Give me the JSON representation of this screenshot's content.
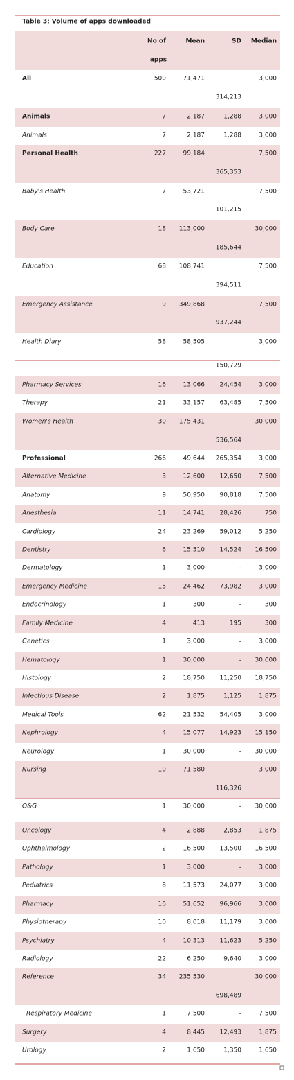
{
  "title": "Table 3: Volume of apps downloaded",
  "table": {
    "header": [
      [
        "No of",
        "apps"
      ],
      [
        "Mean"
      ],
      [
        "SD"
      ],
      [
        "Median"
      ]
    ],
    "rows": [
      [
        "All",
        "500",
        "71,471",
        "314,213",
        "3,000"
      ],
      [
        "Animals",
        "7",
        "2,187",
        "1,288",
        "3,000"
      ],
      [
        "Animals",
        "7",
        "2,187",
        "1,288",
        "3,000"
      ],
      [
        "Personal Health",
        "227",
        "99,184",
        "365,353",
        "7,500"
      ],
      [
        "Baby's Health",
        "7",
        "53,721",
        "101,215",
        "7,500"
      ],
      [
        "Body Care",
        "18",
        "113,000",
        "185,644",
        "30,000"
      ],
      [
        "Education",
        "68",
        "108,741",
        "394,511",
        "7,500"
      ],
      [
        "Emergency Assistance",
        "9",
        "349,868",
        "937,244",
        "7,500"
      ],
      [
        "Health Diary",
        "58",
        "58,505",
        "150,729",
        "3,000"
      ],
      [
        "Pharmacy Services",
        "16",
        "13,066",
        "24,454",
        "3,000"
      ],
      [
        "Therapy",
        "21",
        "33,157",
        "63,485",
        "7,500"
      ],
      [
        "Women's Health",
        "30",
        "175,431",
        "536,564",
        "30,000"
      ],
      [
        "Professional",
        "266",
        "49,644",
        "265,354",
        "3,000"
      ],
      [
        "Alternative Medicine",
        "3",
        "12,600",
        "12,650",
        "7,500"
      ],
      [
        "Anatomy",
        "9",
        "50,950",
        "90,818",
        "7,500"
      ],
      [
        "Anesthesia",
        "11",
        "14,741",
        "28,426",
        "750"
      ],
      [
        "Cardiology",
        "24",
        "23,269",
        "59,012",
        "5,250"
      ],
      [
        "Dentistry",
        "6",
        "15,510",
        "14,524",
        "16,500"
      ],
      [
        "Dermatology",
        "1",
        "3,000",
        "-",
        "3,000"
      ],
      [
        "Emergency Medicine",
        "15",
        "24,462",
        "73,982",
        "3,000"
      ],
      [
        "Endocrinology",
        "1",
        "300",
        "-",
        "300"
      ],
      [
        "Family Medicine",
        "4",
        "413",
        "195",
        "300"
      ],
      [
        "Genetics",
        "1",
        "3,000",
        "-",
        "3,000"
      ],
      [
        "Hematology",
        "1",
        "30,000",
        "-",
        "30,000"
      ],
      [
        "Histology",
        "2",
        "18,750",
        "11,250",
        "18,750"
      ],
      [
        "Infectious Disease",
        "2",
        "1,875",
        "1,125",
        "1,875"
      ],
      [
        "Medical Tools",
        "62",
        "21,532",
        "54,405",
        "3,000"
      ],
      [
        "Nephrology",
        "4",
        "15,077",
        "14,923",
        "15,150"
      ],
      [
        "Neurology",
        "1",
        "30,000",
        "-",
        "30,000"
      ],
      [
        "Nursing",
        "10",
        "71,580",
        "116,326",
        "3,000"
      ],
      [
        "O&G",
        "1",
        "30,000",
        "-",
        "30,000"
      ],
      [
        "Oncology",
        "4",
        "2,888",
        "2,853",
        "1,875"
      ],
      [
        "Ophthalmology",
        "2",
        "16,500",
        "13,500",
        "16,500"
      ],
      [
        "Pathology",
        "1",
        "3,000",
        "-",
        "3,000"
      ],
      [
        "Pediatrics",
        "8",
        "11,573",
        "24,077",
        "3,000"
      ],
      [
        "Pharmacy",
        "16",
        "51,652",
        "96,966",
        "3,000"
      ],
      [
        "Physiotherapy",
        "10",
        "8,018",
        "11,179",
        "3,000"
      ],
      [
        "Psychiatry",
        "4",
        "10,313",
        "11,623",
        "5,250"
      ],
      [
        "Radiology",
        "22",
        "6,250",
        "9,640",
        "3,000"
      ],
      [
        "Reference",
        "34",
        "235,530",
        "698,489",
        "30,000"
      ],
      [
        "Respiratory Medicine",
        "1",
        "7,500",
        "-",
        "7,500"
      ],
      [
        "Surgery",
        "4",
        "8,445",
        "12,493",
        "1,875"
      ],
      [
        "Urology",
        "2",
        "1,650",
        "1,350",
        "1,650"
      ]
    ]
  }
}
